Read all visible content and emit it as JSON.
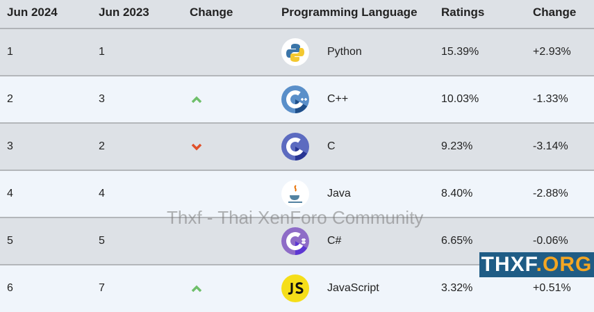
{
  "headers": [
    "Jun 2024",
    "Jun 2023",
    "Change",
    "Programming Language",
    "Ratings",
    "Change"
  ],
  "rows": [
    {
      "jun2024": "1",
      "jun2023": "1",
      "trend": "none",
      "language": "Python",
      "icon": "python-logo-icon",
      "rating": "15.39%",
      "change": "+2.93%"
    },
    {
      "jun2024": "2",
      "jun2023": "3",
      "trend": "up",
      "language": "C++",
      "icon": "cpp-logo-icon",
      "rating": "10.03%",
      "change": "-1.33%"
    },
    {
      "jun2024": "3",
      "jun2023": "2",
      "trend": "down",
      "language": "C",
      "icon": "c-logo-icon",
      "rating": "9.23%",
      "change": "-3.14%"
    },
    {
      "jun2024": "4",
      "jun2023": "4",
      "trend": "none",
      "language": "Java",
      "icon": "java-logo-icon",
      "rating": "8.40%",
      "change": "-2.88%"
    },
    {
      "jun2024": "5",
      "jun2023": "5",
      "trend": "none",
      "language": "C#",
      "icon": "csharp-logo-icon",
      "rating": "6.65%",
      "change": "-0.06%"
    },
    {
      "jun2024": "6",
      "jun2023": "7",
      "trend": "up",
      "language": "JavaScript",
      "icon": "javascript-logo-icon",
      "rating": "3.32%",
      "change": "+0.51%"
    }
  ],
  "colors": {
    "up": "#6fbf6a",
    "down": "#e0502a",
    "row_odd": "#dde1e6",
    "row_even": "#f0f5fb"
  },
  "watermark": "Thxf - Thai XenForo Community",
  "banner": {
    "main": "THXF",
    "org": ".ORG"
  }
}
